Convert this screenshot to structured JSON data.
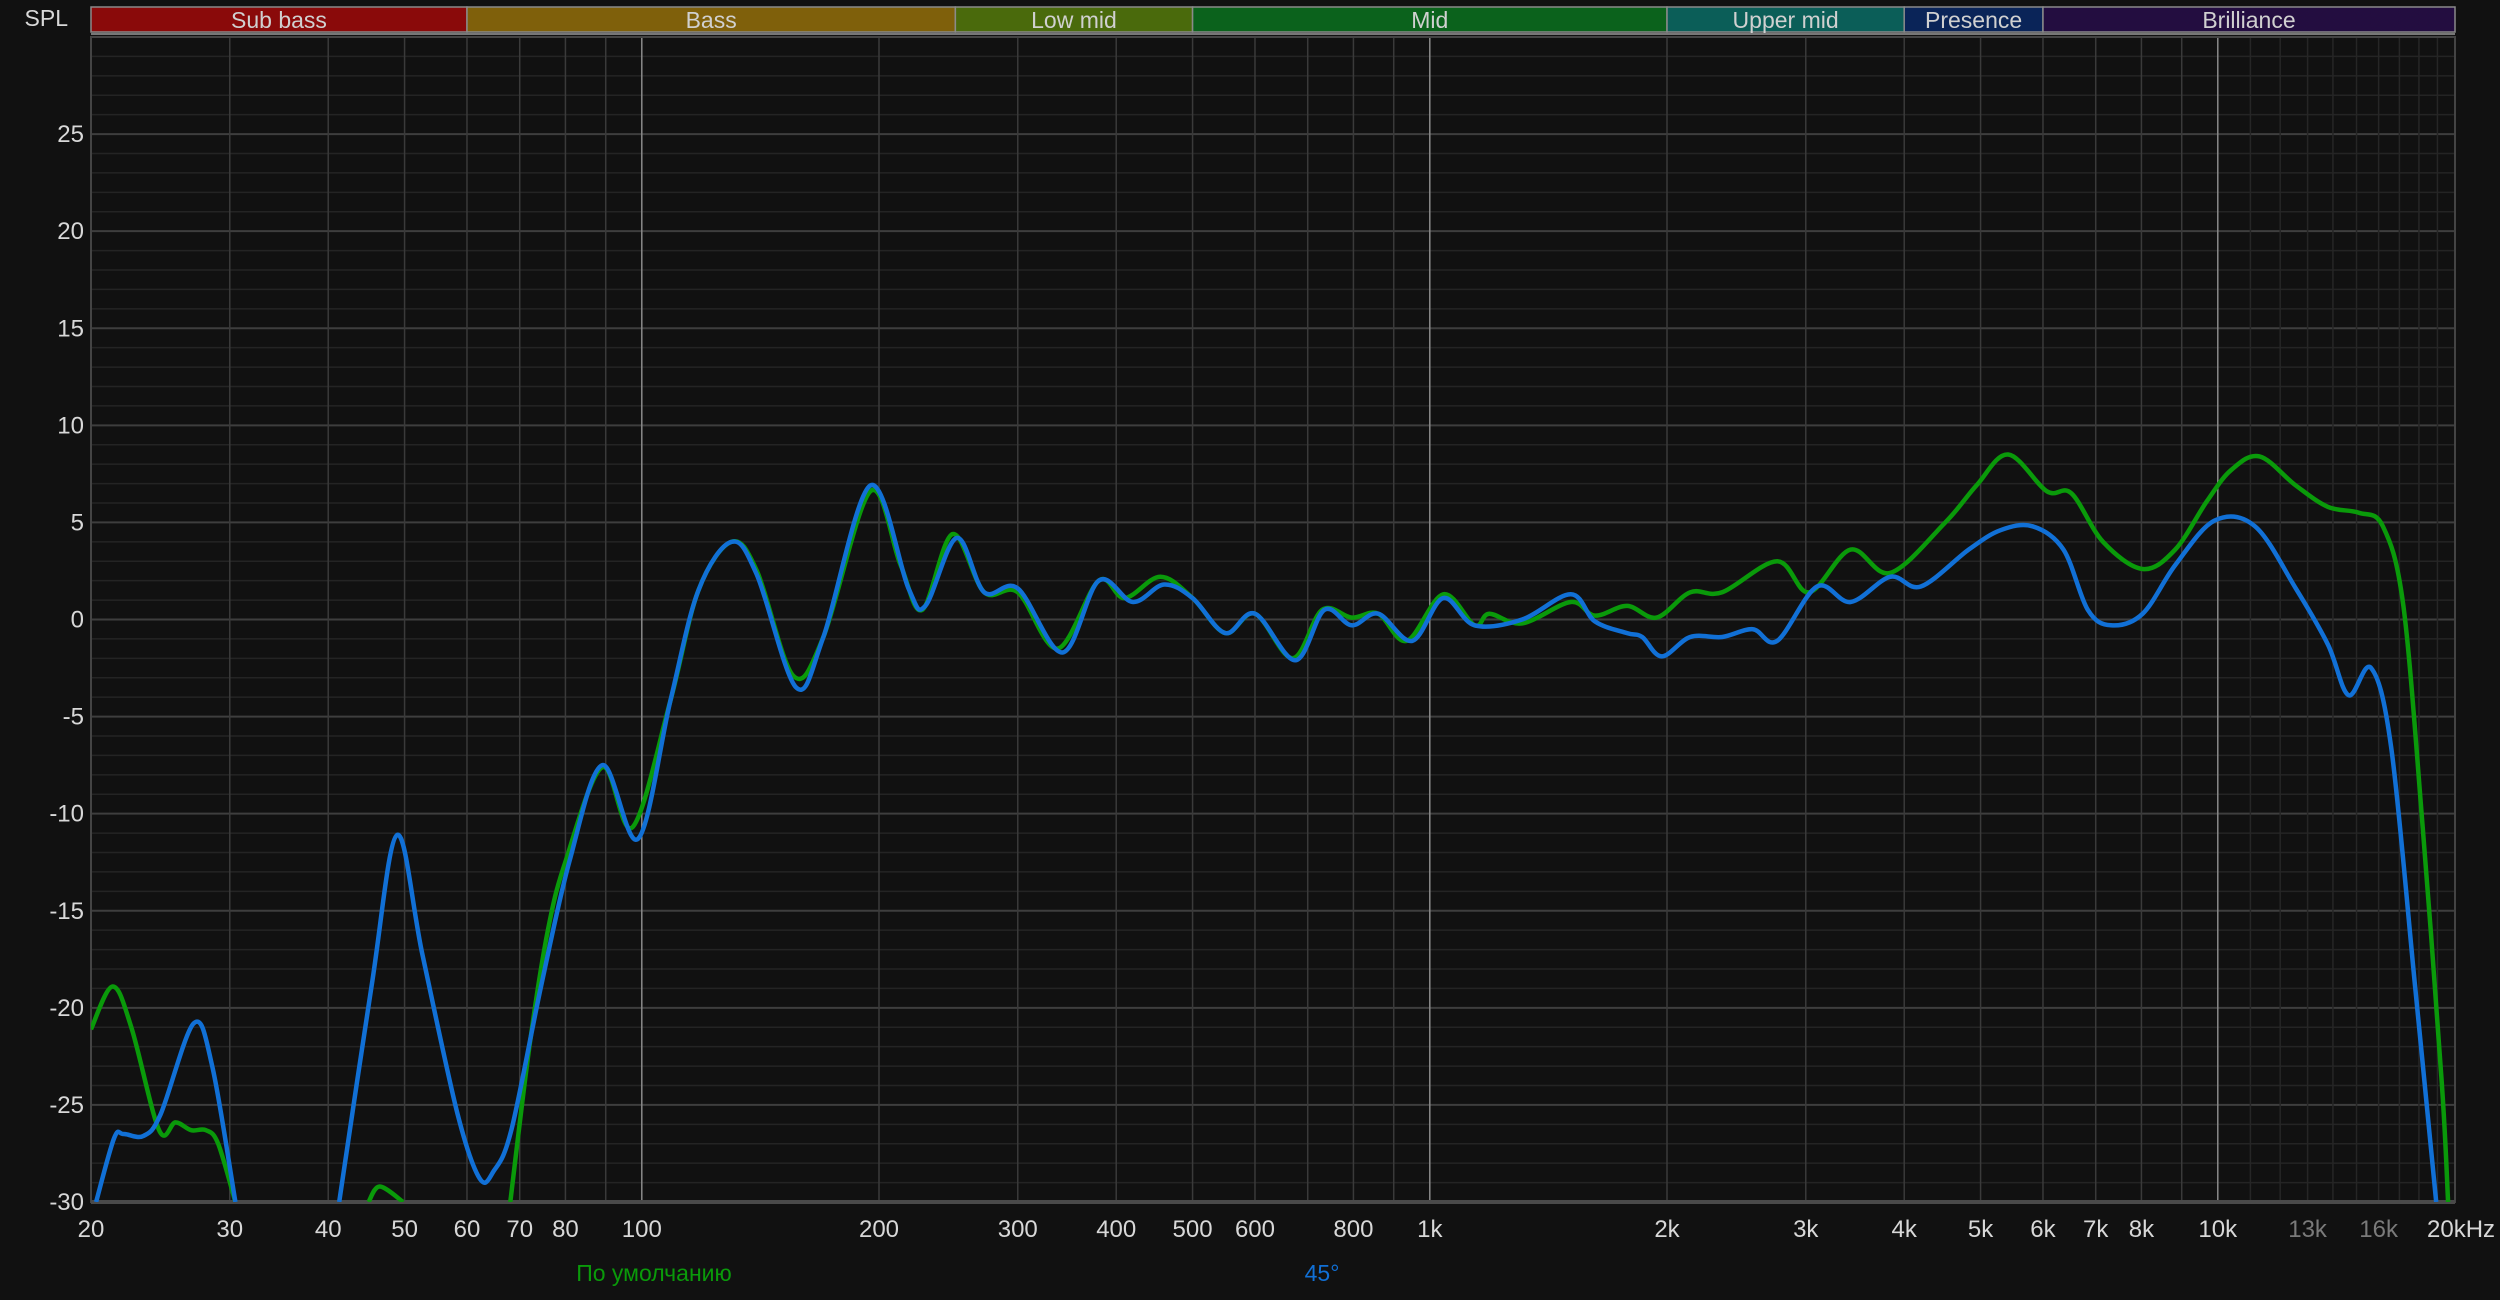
{
  "chart_data": {
    "type": "line",
    "ylabel": "SPL",
    "x_scale": "log",
    "xlim": [
      20,
      20000
    ],
    "ylim": [
      -30,
      30
    ],
    "grid": true,
    "x_ticks": [
      {
        "f": 20,
        "label": "20"
      },
      {
        "f": 30,
        "label": "30"
      },
      {
        "f": 40,
        "label": "40"
      },
      {
        "f": 50,
        "label": "50"
      },
      {
        "f": 60,
        "label": "60"
      },
      {
        "f": 70,
        "label": "70"
      },
      {
        "f": 80,
        "label": "80"
      },
      {
        "f": 100,
        "label": "100"
      },
      {
        "f": 200,
        "label": "200"
      },
      {
        "f": 300,
        "label": "300"
      },
      {
        "f": 400,
        "label": "400"
      },
      {
        "f": 500,
        "label": "500"
      },
      {
        "f": 600,
        "label": "600"
      },
      {
        "f": 800,
        "label": "800"
      },
      {
        "f": 1000,
        "label": "1k"
      },
      {
        "f": 2000,
        "label": "2k"
      },
      {
        "f": 3000,
        "label": "3k"
      },
      {
        "f": 4000,
        "label": "4k"
      },
      {
        "f": 5000,
        "label": "5k"
      },
      {
        "f": 6000,
        "label": "6k"
      },
      {
        "f": 7000,
        "label": "7k"
      },
      {
        "f": 8000,
        "label": "8k"
      },
      {
        "f": 10000,
        "label": "10k"
      },
      {
        "f": 13000,
        "label": "13k",
        "dim": true
      },
      {
        "f": 16000,
        "label": "16k",
        "dim": true
      },
      {
        "f": 20000,
        "label": "20kHz"
      }
    ],
    "y_ticks": [
      25,
      20,
      15,
      10,
      5,
      0,
      -5,
      -10,
      -15,
      -20,
      -25,
      -30
    ],
    "bands": [
      {
        "name": "Sub bass",
        "from": 20,
        "to": 60,
        "color": "#8a0a0a"
      },
      {
        "name": "Bass",
        "from": 60,
        "to": 250,
        "color": "#7f600b"
      },
      {
        "name": "Low mid",
        "from": 250,
        "to": 500,
        "color": "#4a6a0c"
      },
      {
        "name": "Mid",
        "from": 500,
        "to": 2000,
        "color": "#0b621c"
      },
      {
        "name": "Upper mid",
        "from": 2000,
        "to": 4000,
        "color": "#0b5e58"
      },
      {
        "name": "Presence",
        "from": 4000,
        "to": 6000,
        "color": "#0a2458"
      },
      {
        "name": "Brilliance",
        "from": 6000,
        "to": 20000,
        "color": "#230d40"
      }
    ],
    "legend_position": "bottom",
    "series": [
      {
        "name": "По умолчанию",
        "color": "#0a9a0a",
        "segments": [
          [
            [
              20,
              -21.1
            ],
            [
              21.3,
              -18.9
            ],
            [
              22.5,
              -21
            ],
            [
              24.4,
              -26.3
            ],
            [
              25.6,
              -25.9
            ],
            [
              26.8,
              -26.3
            ],
            [
              28,
              -26.3
            ],
            [
              29,
              -27
            ],
            [
              30.5,
              -30
            ]
          ],
          [
            [
              45,
              -30
            ],
            [
              46.5,
              -29.2
            ],
            [
              49.8,
              -30
            ]
          ],
          [
            [
              68.1,
              -30
            ],
            [
              72,
              -22
            ],
            [
              76,
              -16
            ],
            [
              80.1,
              -12.4
            ],
            [
              89.1,
              -7.6
            ],
            [
              97.3,
              -10.7
            ],
            [
              108.7,
              -4.2
            ],
            [
              118,
              1.5
            ],
            [
              130,
              4
            ],
            [
              140,
              2.5
            ],
            [
              155.7,
              -2.9
            ],
            [
              170,
              -0.9
            ],
            [
              195,
              6.6
            ],
            [
              213,
              2.8
            ],
            [
              227,
              0.5
            ],
            [
              248,
              4.4
            ],
            [
              272,
              1.4
            ],
            [
              300,
              1.4
            ],
            [
              337,
              -1.5
            ],
            [
              380,
              2
            ],
            [
              410,
              1.1
            ],
            [
              455,
              2.2
            ],
            [
              500,
              1.1
            ],
            [
              550,
              -0.7
            ],
            [
              600,
              0.3
            ],
            [
              670,
              -2
            ],
            [
              730,
              0.5
            ],
            [
              796,
              0.1
            ],
            [
              860,
              0.3
            ],
            [
              935,
              -1.1
            ],
            [
              1040,
              1.3
            ],
            [
              1140,
              -0.3
            ],
            [
              1190,
              0.3
            ],
            [
              1310,
              -0.2
            ],
            [
              1510,
              0.9
            ],
            [
              1620,
              0.2
            ],
            [
              1780,
              0.7
            ],
            [
              1940,
              0.1
            ],
            [
              2140,
              1.4
            ],
            [
              2350,
              1.4
            ],
            [
              2760,
              3
            ],
            [
              3030,
              1.4
            ],
            [
              3420,
              3.6
            ],
            [
              3840,
              2.4
            ],
            [
              4510,
              5
            ],
            [
              4940,
              6.9
            ],
            [
              5420,
              8.5
            ],
            [
              6070,
              6.6
            ],
            [
              6520,
              6.5
            ],
            [
              7150,
              4
            ],
            [
              8030,
              2.6
            ],
            [
              8830,
              3.6
            ],
            [
              9690,
              6.1
            ],
            [
              10400,
              7.7
            ],
            [
              11300,
              8.4
            ],
            [
              12560,
              6.9
            ],
            [
              13800,
              5.8
            ],
            [
              15100,
              5.5
            ],
            [
              16200,
              4.8
            ],
            [
              17200,
              0.7
            ],
            [
              18200,
              -10.7
            ],
            [
              19240,
              -23.8
            ],
            [
              19600,
              -30
            ]
          ]
        ]
      },
      {
        "name": "45°",
        "color": "#1170d6",
        "segments": [
          [
            [
              20.3,
              -30
            ],
            [
              21.4,
              -26.7
            ],
            [
              22,
              -26.5
            ],
            [
              23.3,
              -26.6
            ],
            [
              24.5,
              -25.5
            ],
            [
              27,
              -20.8
            ],
            [
              28.5,
              -23
            ],
            [
              30.5,
              -30
            ]
          ],
          [
            [
              41.3,
              -30
            ],
            [
              45.4,
              -18.9
            ],
            [
              48.9,
              -11.1
            ],
            [
              52.7,
              -17.3
            ],
            [
              58.4,
              -25.5
            ],
            [
              62.3,
              -28.8
            ],
            [
              64.9,
              -28.4
            ],
            [
              68.3,
              -26.3
            ],
            [
              74.5,
              -18.9
            ],
            [
              81,
              -12.4
            ],
            [
              89.1,
              -7.5
            ],
            [
              98.9,
              -11.3
            ],
            [
              108.7,
              -4.2
            ],
            [
              118,
              1.5
            ],
            [
              130,
              4
            ],
            [
              140,
              2.3
            ],
            [
              157,
              -3.5
            ],
            [
              170,
              -0.9
            ],
            [
              195,
              6.9
            ],
            [
              218,
              1.6
            ],
            [
              229,
              0.7
            ],
            [
              251,
              4.2
            ],
            [
              272,
              1.4
            ],
            [
              300,
              1.6
            ],
            [
              342,
              -1.7
            ],
            [
              380,
              2
            ],
            [
              420,
              0.9
            ],
            [
              460,
              1.8
            ],
            [
              500,
              1.1
            ],
            [
              550,
              -0.7
            ],
            [
              600,
              0.3
            ],
            [
              675,
              -2.1
            ],
            [
              735,
              0.5
            ],
            [
              796,
              -0.3
            ],
            [
              860,
              0.3
            ],
            [
              950,
              -1.1
            ],
            [
              1040,
              1.1
            ],
            [
              1140,
              -0.3
            ],
            [
              1310,
              0
            ],
            [
              1510,
              1.3
            ],
            [
              1620,
              -0.1
            ],
            [
              1780,
              -0.7
            ],
            [
              1860,
              -0.9
            ],
            [
              1970,
              -1.9
            ],
            [
              2140,
              -0.9
            ],
            [
              2350,
              -0.9
            ],
            [
              2570,
              -0.5
            ],
            [
              2760,
              -1.1
            ],
            [
              3100,
              1.7
            ],
            [
              3420,
              0.9
            ],
            [
              3840,
              2.2
            ],
            [
              4200,
              1.7
            ],
            [
              4830,
              3.6
            ],
            [
              5300,
              4.6
            ],
            [
              5820,
              4.8
            ],
            [
              6370,
              3.6
            ],
            [
              6840,
              0.5
            ],
            [
              7320,
              -0.3
            ],
            [
              8030,
              0.3
            ],
            [
              8830,
              2.8
            ],
            [
              9910,
              5.1
            ],
            [
              11150,
              4.8
            ],
            [
              12560,
              1.6
            ],
            [
              13800,
              -1.3
            ],
            [
              14650,
              -3.9
            ],
            [
              15650,
              -2.5
            ],
            [
              16600,
              -6.6
            ],
            [
              17800,
              -18.9
            ],
            [
              18930,
              -30
            ]
          ]
        ]
      }
    ]
  }
}
